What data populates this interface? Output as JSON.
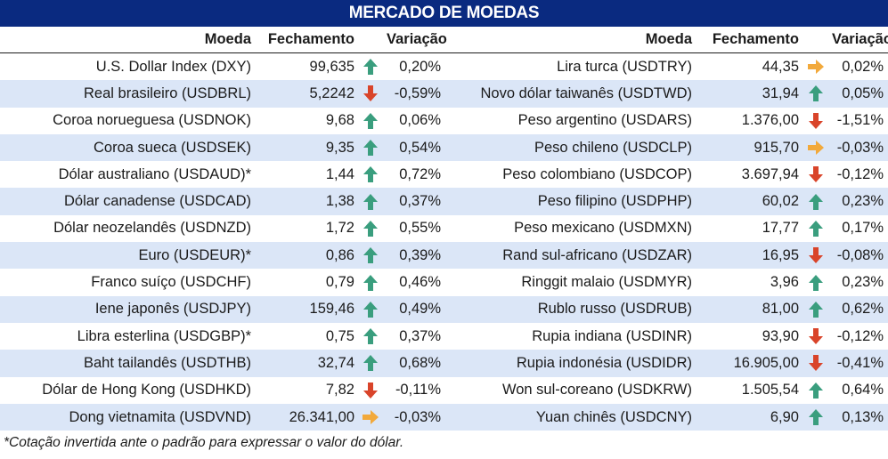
{
  "title": "MERCADO DE MOEDAS",
  "headers": {
    "name": "Moeda",
    "close": "Fechamento",
    "change": "Variação"
  },
  "colors": {
    "up": "#3a9e7e",
    "down": "#d9442a",
    "flat": "#f2a93b",
    "header_bg": "#0a2a80",
    "stripe": "#dbe6f7"
  },
  "left": [
    {
      "name": "U.S. Dollar Index (DXY)",
      "close": "99,635",
      "change": "0,20%",
      "trend": "up"
    },
    {
      "name": "Real brasileiro (USDBRL)",
      "close": "5,2242",
      "change": "-0,59%",
      "trend": "down"
    },
    {
      "name": "Coroa norueguesa (USDNOK)",
      "close": "9,68",
      "change": "0,06%",
      "trend": "up"
    },
    {
      "name": "Coroa sueca (USDSEK)",
      "close": "9,35",
      "change": "0,54%",
      "trend": "up"
    },
    {
      "name": "Dólar australiano (USDAUD)*",
      "close": "1,44",
      "change": "0,72%",
      "trend": "up"
    },
    {
      "name": "Dólar canadense (USDCAD)",
      "close": "1,38",
      "change": "0,37%",
      "trend": "up"
    },
    {
      "name": "Dólar neozelandês (USDNZD)",
      "close": "1,72",
      "change": "0,55%",
      "trend": "up"
    },
    {
      "name": "Euro (USDEUR)*",
      "close": "0,86",
      "change": "0,39%",
      "trend": "up"
    },
    {
      "name": "Franco suíço (USDCHF)",
      "close": "0,79",
      "change": "0,46%",
      "trend": "up"
    },
    {
      "name": "Iene japonês (USDJPY)",
      "close": "159,46",
      "change": "0,49%",
      "trend": "up"
    },
    {
      "name": "Libra esterlina (USDGBP)*",
      "close": "0,75",
      "change": "0,37%",
      "trend": "up"
    },
    {
      "name": "Baht tailandês (USDTHB)",
      "close": "32,74",
      "change": "0,68%",
      "trend": "up"
    },
    {
      "name": "Dólar de Hong Kong (USDHKD)",
      "close": "7,82",
      "change": "-0,11%",
      "trend": "down"
    },
    {
      "name": "Dong vietnamita (USDVND)",
      "close": "26.341,00",
      "change": "-0,03%",
      "trend": "flat"
    }
  ],
  "right": [
    {
      "name": "Lira turca (USDTRY)",
      "close": "44,35",
      "change": "0,02%",
      "trend": "flat"
    },
    {
      "name": "Novo dólar taiwanês (USDTWD)",
      "close": "31,94",
      "change": "0,05%",
      "trend": "up"
    },
    {
      "name": "Peso argentino (USDARS)",
      "close": "1.376,00",
      "change": "-1,51%",
      "trend": "down"
    },
    {
      "name": "Peso chileno (USDCLP)",
      "close": "915,70",
      "change": "-0,03%",
      "trend": "flat"
    },
    {
      "name": "Peso colombiano (USDCOP)",
      "close": "3.697,94",
      "change": "-0,12%",
      "trend": "down"
    },
    {
      "name": "Peso filipino (USDPHP)",
      "close": "60,02",
      "change": "0,23%",
      "trend": "up"
    },
    {
      "name": "Peso mexicano (USDMXN)",
      "close": "17,77",
      "change": "0,17%",
      "trend": "up"
    },
    {
      "name": "Rand sul-africano (USDZAR)",
      "close": "16,95",
      "change": "-0,08%",
      "trend": "down"
    },
    {
      "name": "Ringgit malaio (USDMYR)",
      "close": "3,96",
      "change": "0,23%",
      "trend": "up"
    },
    {
      "name": "Rublo russo (USDRUB)",
      "close": "81,00",
      "change": "0,62%",
      "trend": "up"
    },
    {
      "name": "Rupia indiana (USDINR)",
      "close": "93,90",
      "change": "-0,12%",
      "trend": "down"
    },
    {
      "name": "Rupia indonésia (USDIDR)",
      "close": "16.905,00",
      "change": "-0,41%",
      "trend": "down"
    },
    {
      "name": "Won sul-coreano (USDKRW)",
      "close": "1.505,54",
      "change": "0,64%",
      "trend": "up"
    },
    {
      "name": "Yuan chinês (USDCNY)",
      "close": "6,90",
      "change": "0,13%",
      "trend": "up"
    }
  ],
  "footnote": "*Cotação invertida ante o padrão para expressar o valor do dólar."
}
